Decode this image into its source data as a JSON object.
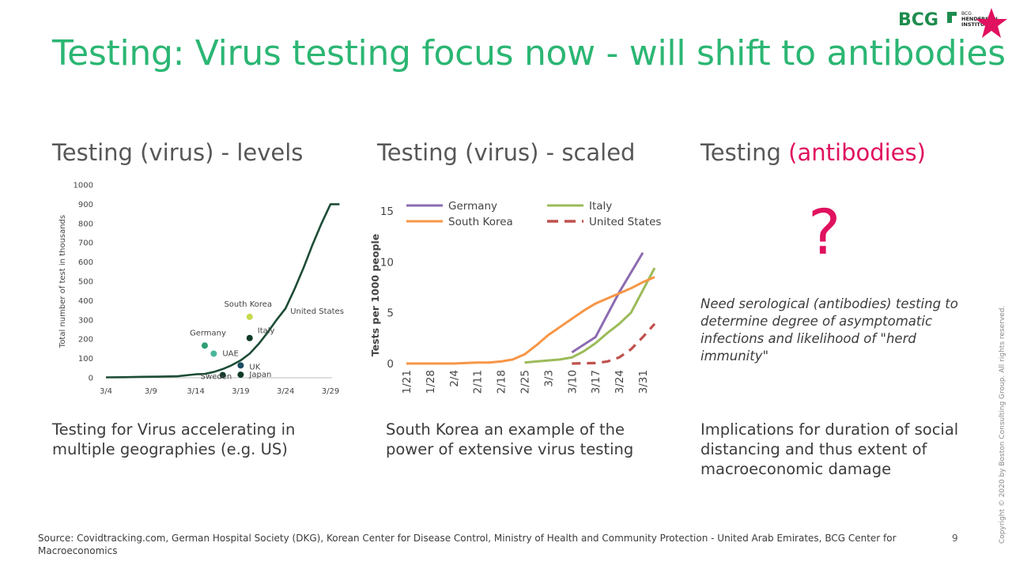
{
  "title": "Testing: Virus testing focus now - will shift to antibodies",
  "logo": {
    "main": "BCG",
    "sub1": "BCG",
    "sub2": "HENDERSON",
    "sub3": "INSTITUTE"
  },
  "sections": [
    {
      "heading": "Testing (virus) - levels",
      "caption": "Testing for Virus accelerating in multiple geographies (e.g. US)"
    },
    {
      "heading": "Testing (virus) - scaled",
      "caption": "South Korea an example of the power of extensive virus testing"
    },
    {
      "heading_prefix": "Testing ",
      "heading_accent": "(antibodies)",
      "caption": "Implications for duration of social distancing and thus extent of macroeconomic damage",
      "question_mark": "?",
      "note": "Need serological (antibodies) testing to determine degree of asymptomatic infections and likelihood of \"herd immunity\""
    }
  ],
  "source": "Source: Covidtracking.com, German Hospital Society (DKG), Korean Center for Disease Control, Ministry of Health and Community Protection - United Arab Emirates, BCG Center for Macroeconomics",
  "page_number": "9",
  "copyright": "Copyright © 2020 by Boston Consulting Group. All rights reserved.",
  "colors": {
    "title": "#2bb673",
    "accent": "#e0115f",
    "us_line": "#1d4d36"
  },
  "chart_data": [
    {
      "type": "line",
      "ylabel": "Total number of test in thousands",
      "ylim": [
        0,
        1000
      ],
      "yticks": [
        "0",
        "100",
        "200",
        "300",
        "400",
        "500",
        "600",
        "700",
        "800",
        "900",
        "1000"
      ],
      "xticks": [
        "3/4",
        "3/9",
        "3/14",
        "3/19",
        "3/24",
        "3/29"
      ],
      "series": [
        {
          "name": "United States",
          "color": "#1d4d36",
          "x": [
            0,
            2,
            4,
            6,
            8,
            10,
            11,
            12,
            13,
            14,
            15,
            16,
            17,
            18,
            19,
            20,
            21,
            22,
            23,
            24,
            25,
            26
          ],
          "values": [
            2,
            3,
            5,
            6,
            8,
            18,
            20,
            30,
            45,
            65,
            90,
            125,
            175,
            235,
            300,
            360,
            460,
            570,
            690,
            800,
            900,
            900
          ]
        }
      ],
      "points": [
        {
          "name": "South Korea",
          "x": 16,
          "value": 316,
          "color": "#c8d94a"
        },
        {
          "name": "Italy",
          "x": 16,
          "value": 206,
          "color": "#0e3b26"
        },
        {
          "name": "Germany",
          "x": 11,
          "value": 167,
          "color": "#2f9e74"
        },
        {
          "name": "UAE",
          "x": 12,
          "value": 125,
          "color": "#4ab59a"
        },
        {
          "name": "UK",
          "x": 15,
          "value": 64,
          "color": "#1c4d63"
        },
        {
          "name": "Sweden",
          "x": 13,
          "value": 14,
          "color": "#0e3b26"
        },
        {
          "name": "Japan",
          "x": 15,
          "value": 16,
          "color": "#0e3b26"
        }
      ]
    },
    {
      "type": "line",
      "ylabel": "Tests per 1000 people",
      "ylim": [
        0,
        15
      ],
      "yticks": [
        "0",
        "5",
        "10",
        "15"
      ],
      "xticks": [
        "1/21",
        "1/28",
        "2/4",
        "2/11",
        "2/18",
        "2/25",
        "3/3",
        "3/10",
        "3/17",
        "3/24",
        "3/31"
      ],
      "legend": [
        "Germany",
        "Italy",
        "South Korea",
        "United States"
      ],
      "series": [
        {
          "name": "Germany",
          "color": "#8c6bb1",
          "dash": false,
          "x": [
            7,
            8,
            9,
            10
          ],
          "values": [
            1.1,
            2.6,
            7.0,
            10.9
          ]
        },
        {
          "name": "Italy",
          "color": "#9bbb59",
          "dash": false,
          "x": [
            5,
            5.5,
            6,
            6.5,
            7,
            7.5,
            8,
            8.5,
            9,
            9.5,
            10,
            10.5
          ],
          "values": [
            0.1,
            0.2,
            0.3,
            0.4,
            0.6,
            1.2,
            2.0,
            3.0,
            3.9,
            5.0,
            7.2,
            9.4
          ]
        },
        {
          "name": "South Korea",
          "color": "#f79646",
          "dash": false,
          "x": [
            0,
            1,
            2,
            3,
            3.5,
            4,
            4.5,
            5,
            5.5,
            6,
            6.5,
            7,
            7.5,
            8,
            8.5,
            9,
            9.5,
            10,
            10.5
          ],
          "values": [
            0,
            0,
            0,
            0.1,
            0.1,
            0.2,
            0.4,
            0.9,
            1.8,
            2.8,
            3.6,
            4.4,
            5.2,
            5.9,
            6.4,
            6.9,
            7.4,
            8.0,
            8.5
          ]
        },
        {
          "name": "United States",
          "color": "#c0504d",
          "dash": true,
          "x": [
            7,
            8,
            8.5,
            9,
            9.5,
            10,
            10.5
          ],
          "values": [
            0,
            0.05,
            0.2,
            0.6,
            1.4,
            2.6,
            3.9
          ]
        }
      ]
    }
  ]
}
